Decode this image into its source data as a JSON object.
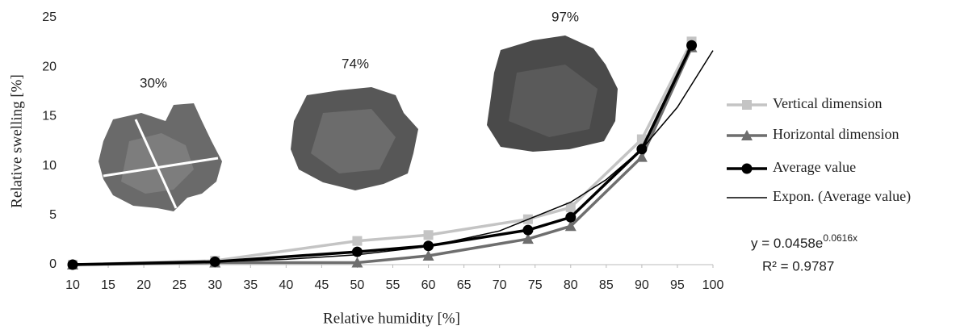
{
  "chart_data": {
    "type": "line",
    "xlabel": "Relative humidity [%]",
    "ylabel": "Relative swelling [%]",
    "xlim": [
      10,
      100
    ],
    "xticks": [
      10,
      15,
      20,
      25,
      30,
      35,
      40,
      45,
      50,
      55,
      60,
      65,
      70,
      75,
      80,
      85,
      90,
      95,
      100
    ],
    "ylim": [
      0,
      25
    ],
    "yticks": [
      0,
      5,
      10,
      15,
      20,
      25
    ],
    "x": [
      10,
      30,
      50,
      60,
      74,
      80,
      90,
      97
    ],
    "series": [
      {
        "name": "Vertical dimension",
        "color": "#c4c4c4",
        "marker": "square",
        "values": [
          0,
          0.4,
          2.4,
          3.0,
          4.6,
          5.8,
          12.7,
          22.6
        ]
      },
      {
        "name": "Horizontal dimension",
        "color": "#6e6e6e",
        "marker": "triangle",
        "values": [
          0,
          0.2,
          0.2,
          0.9,
          2.6,
          3.9,
          10.9,
          22.0
        ]
      },
      {
        "name": "Average value",
        "color": "#000000",
        "marker": "circle",
        "values": [
          0,
          0.3,
          1.3,
          1.9,
          3.5,
          4.8,
          11.7,
          22.2
        ]
      }
    ],
    "trendline": {
      "name": "Expon. (Average value)",
      "color": "#000000",
      "x": [
        10,
        20,
        30,
        40,
        50,
        60,
        70,
        80,
        85,
        90,
        95,
        100
      ],
      "values": [
        0.085,
        0.157,
        0.291,
        0.538,
        0.997,
        1.845,
        3.416,
        6.325,
        8.61,
        11.71,
        15.94,
        21.68
      ],
      "equation": "y = 0.0458e",
      "equation_exponent": "0.0616x",
      "r2": "R² = 0.9787"
    },
    "annotations": [
      "30%",
      "74%",
      "97%"
    ]
  }
}
